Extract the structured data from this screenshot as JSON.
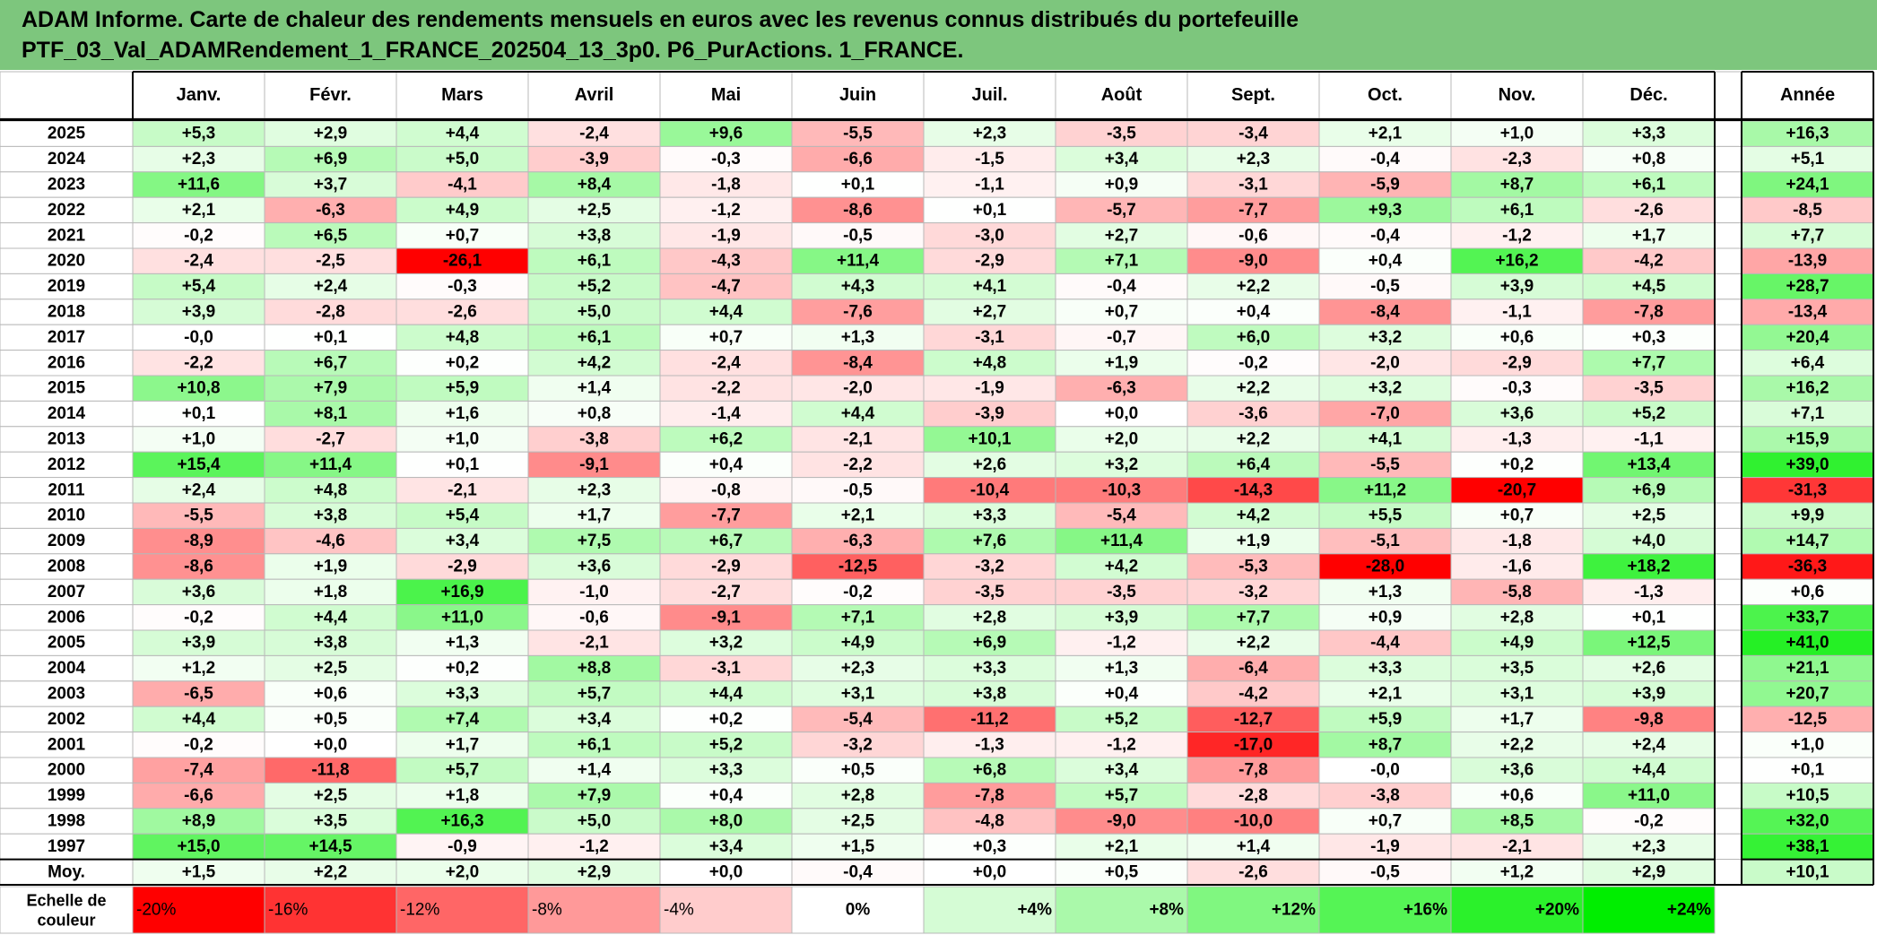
{
  "header": {
    "title_line1": "ADAM Informe. Carte de chaleur des rendements mensuels en euros avec les revenus connus distribués du portefeuille",
    "title_line2": "PTF_03_Val_ADAMRendement_1_FRANCE_202504_13_3p0. P6_PurActions. 1_FRANCE."
  },
  "chart_data": {
    "type": "heatmap",
    "title": "ADAM Informe. Carte de chaleur des rendements mensuels en euros avec les revenus connus distribués du portefeuille PTF_03_Val_ADAMRendement_1_FRANCE_202504_13_3p0. P6_PurActions. 1_FRANCE.",
    "columns": [
      "Janv.",
      "Févr.",
      "Mars",
      "Avril",
      "Mai",
      "Juin",
      "Juil.",
      "Août",
      "Sept.",
      "Oct.",
      "Nov.",
      "Déc."
    ],
    "annual_header": "Année",
    "color_scale_min": -20,
    "color_scale_max": 24,
    "color_negative": "#ff0000",
    "color_positive": "#00ee00",
    "rows": [
      {
        "year": "2025",
        "values": [
          "+5,3",
          "+2,9",
          "+4,4",
          "-2,4",
          "+9,6",
          "-5,5",
          "+2,3",
          "-3,5",
          "-3,4",
          "+2,1",
          "+1,0",
          "+3,3"
        ],
        "annual": "+16,3"
      },
      {
        "year": "2024",
        "values": [
          "+2,3",
          "+6,9",
          "+5,0",
          "-3,9",
          "-0,3",
          "-6,6",
          "-1,5",
          "+3,4",
          "+2,3",
          "-0,4",
          "-2,3",
          "+0,8"
        ],
        "annual": "+5,1"
      },
      {
        "year": "2023",
        "values": [
          "+11,6",
          "+3,7",
          "-4,1",
          "+8,4",
          "-1,8",
          "+0,1",
          "-1,1",
          "+0,9",
          "-3,1",
          "-5,9",
          "+8,7",
          "+6,1"
        ],
        "annual": "+24,1"
      },
      {
        "year": "2022",
        "values": [
          "+2,1",
          "-6,3",
          "+4,9",
          "+2,5",
          "-1,2",
          "-8,6",
          "+0,1",
          "-5,7",
          "-7,7",
          "+9,3",
          "+6,1",
          "-2,6"
        ],
        "annual": "-8,5"
      },
      {
        "year": "2021",
        "values": [
          "-0,2",
          "+6,5",
          "+0,7",
          "+3,8",
          "-1,9",
          "-0,5",
          "-3,0",
          "+2,7",
          "-0,6",
          "-0,4",
          "-1,2",
          "+1,7"
        ],
        "annual": "+7,7"
      },
      {
        "year": "2020",
        "values": [
          "-2,4",
          "-2,5",
          "-26,1",
          "+6,1",
          "-4,3",
          "+11,4",
          "-2,9",
          "+7,1",
          "-9,0",
          "+0,4",
          "+16,2",
          "-4,2"
        ],
        "annual": "-13,9"
      },
      {
        "year": "2019",
        "values": [
          "+5,4",
          "+2,4",
          "-0,3",
          "+5,2",
          "-4,7",
          "+4,3",
          "+4,1",
          "-0,4",
          "+2,2",
          "-0,5",
          "+3,9",
          "+4,5"
        ],
        "annual": "+28,7"
      },
      {
        "year": "2018",
        "values": [
          "+3,9",
          "-2,8",
          "-2,6",
          "+5,0",
          "+4,4",
          "-7,6",
          "+2,7",
          "+0,7",
          "+0,4",
          "-8,4",
          "-1,1",
          "-7,8"
        ],
        "annual": "-13,4"
      },
      {
        "year": "2017",
        "values": [
          "-0,0",
          "+0,1",
          "+4,8",
          "+6,1",
          "+0,7",
          "+1,3",
          "-3,1",
          "-0,7",
          "+6,0",
          "+3,2",
          "+0,6",
          "+0,3"
        ],
        "annual": "+20,4"
      },
      {
        "year": "2016",
        "values": [
          "-2,2",
          "+6,7",
          "+0,2",
          "+4,2",
          "-2,4",
          "-8,4",
          "+4,8",
          "+1,9",
          "-0,2",
          "-2,0",
          "-2,9",
          "+7,7"
        ],
        "annual": "+6,4"
      },
      {
        "year": "2015",
        "values": [
          "+10,8",
          "+7,9",
          "+5,9",
          "+1,4",
          "-2,2",
          "-2,0",
          "-1,9",
          "-6,3",
          "+2,2",
          "+3,2",
          "-0,3",
          "-3,5"
        ],
        "annual": "+16,2"
      },
      {
        "year": "2014",
        "values": [
          "+0,1",
          "+8,1",
          "+1,6",
          "+0,8",
          "-1,4",
          "+4,4",
          "-3,9",
          "+0,0",
          "-3,6",
          "-7,0",
          "+3,6",
          "+5,2"
        ],
        "annual": "+7,1"
      },
      {
        "year": "2013",
        "values": [
          "+1,0",
          "-2,7",
          "+1,0",
          "-3,8",
          "+6,2",
          "-2,1",
          "+10,1",
          "+2,0",
          "+2,2",
          "+4,1",
          "-1,3",
          "-1,1"
        ],
        "annual": "+15,9"
      },
      {
        "year": "2012",
        "values": [
          "+15,4",
          "+11,4",
          "+0,1",
          "-9,1",
          "+0,4",
          "-2,2",
          "+2,6",
          "+3,2",
          "+6,4",
          "-5,5",
          "+0,2",
          "+13,4"
        ],
        "annual": "+39,0"
      },
      {
        "year": "2011",
        "values": [
          "+2,4",
          "+4,8",
          "-2,1",
          "+2,3",
          "-0,8",
          "-0,5",
          "-10,4",
          "-10,3",
          "-14,3",
          "+11,2",
          "-20,7",
          "+6,9"
        ],
        "annual": "-31,3"
      },
      {
        "year": "2010",
        "values": [
          "-5,5",
          "+3,8",
          "+5,4",
          "+1,7",
          "-7,7",
          "+2,1",
          "+3,3",
          "-5,4",
          "+4,2",
          "+5,5",
          "+0,7",
          "+2,5"
        ],
        "annual": "+9,9"
      },
      {
        "year": "2009",
        "values": [
          "-8,9",
          "-4,6",
          "+3,4",
          "+7,5",
          "+6,7",
          "-6,3",
          "+7,6",
          "+11,4",
          "+1,9",
          "-5,1",
          "-1,8",
          "+4,0"
        ],
        "annual": "+14,7"
      },
      {
        "year": "2008",
        "values": [
          "-8,6",
          "+1,9",
          "-2,9",
          "+3,6",
          "-2,9",
          "-12,5",
          "-3,2",
          "+4,2",
          "-5,3",
          "-28,0",
          "-1,6",
          "+18,2"
        ],
        "annual": "-36,3"
      },
      {
        "year": "2007",
        "values": [
          "+3,6",
          "+1,8",
          "+16,9",
          "-1,0",
          "-2,7",
          "-0,2",
          "-3,5",
          "-3,5",
          "-3,2",
          "+1,3",
          "-5,8",
          "-1,3"
        ],
        "annual": "+0,6"
      },
      {
        "year": "2006",
        "values": [
          "-0,2",
          "+4,4",
          "+11,0",
          "-0,6",
          "-9,1",
          "+7,1",
          "+2,8",
          "+3,9",
          "+7,7",
          "+0,9",
          "+2,8",
          "+0,1"
        ],
        "annual": "+33,7"
      },
      {
        "year": "2005",
        "values": [
          "+3,9",
          "+3,8",
          "+1,3",
          "-2,1",
          "+3,2",
          "+4,9",
          "+6,9",
          "-1,2",
          "+2,2",
          "-4,4",
          "+4,9",
          "+12,5"
        ],
        "annual": "+41,0"
      },
      {
        "year": "2004",
        "values": [
          "+1,2",
          "+2,5",
          "+0,2",
          "+8,8",
          "-3,1",
          "+2,3",
          "+3,3",
          "+1,3",
          "-6,4",
          "+3,3",
          "+3,5",
          "+2,6"
        ],
        "annual": "+21,1"
      },
      {
        "year": "2003",
        "values": [
          "-6,5",
          "+0,6",
          "+3,3",
          "+5,7",
          "+4,4",
          "+3,1",
          "+3,8",
          "+0,4",
          "-4,2",
          "+2,1",
          "+3,1",
          "+3,9"
        ],
        "annual": "+20,7"
      },
      {
        "year": "2002",
        "values": [
          "+4,4",
          "+0,5",
          "+7,4",
          "+3,4",
          "+0,2",
          "-5,4",
          "-11,2",
          "+5,2",
          "-12,7",
          "+5,9",
          "+1,7",
          "-9,8"
        ],
        "annual": "-12,5"
      },
      {
        "year": "2001",
        "values": [
          "-0,2",
          "+0,0",
          "+1,7",
          "+6,1",
          "+5,2",
          "-3,2",
          "-1,3",
          "-1,2",
          "-17,0",
          "+8,7",
          "+2,2",
          "+2,4"
        ],
        "annual": "+1,0"
      },
      {
        "year": "2000",
        "values": [
          "-7,4",
          "-11,8",
          "+5,7",
          "+1,4",
          "+3,3",
          "+0,5",
          "+6,8",
          "+3,4",
          "-7,8",
          "-0,0",
          "+3,6",
          "+4,4"
        ],
        "annual": "+0,1"
      },
      {
        "year": "1999",
        "values": [
          "-6,6",
          "+2,5",
          "+1,8",
          "+7,9",
          "+0,4",
          "+2,8",
          "-7,8",
          "+5,7",
          "-2,8",
          "-3,8",
          "+0,6",
          "+11,0"
        ],
        "annual": "+10,5"
      },
      {
        "year": "1998",
        "values": [
          "+8,9",
          "+3,5",
          "+16,3",
          "+5,0",
          "+8,0",
          "+2,5",
          "-4,8",
          "-9,0",
          "-10,0",
          "+0,7",
          "+8,5",
          "-0,2"
        ],
        "annual": "+32,0"
      },
      {
        "year": "1997",
        "values": [
          "+15,0",
          "+14,5",
          "-0,9",
          "-1,2",
          "+3,4",
          "+1,5",
          "+0,3",
          "+2,1",
          "+1,4",
          "-1,9",
          "-2,1",
          "+2,3"
        ],
        "annual": "+38,1"
      }
    ],
    "average": {
      "label": "Moy.",
      "values": [
        "+1,5",
        "+2,2",
        "+2,0",
        "+2,9",
        "+0,0",
        "-0,4",
        "+0,0",
        "+0,5",
        "-2,6",
        "-0,5",
        "+1,2",
        "+2,9"
      ],
      "annual": "+10,1"
    },
    "legend": {
      "label_line1": "Echelle de",
      "label_line2": "couleur",
      "steps": [
        {
          "label": "-20%",
          "value": -20
        },
        {
          "label": "-16%",
          "value": -16
        },
        {
          "label": "-12%",
          "value": -12
        },
        {
          "label": "-8%",
          "value": -8
        },
        {
          "label": "-4%",
          "value": -4
        },
        {
          "label": "0%",
          "value": 0
        },
        {
          "label": "+4%",
          "value": 4
        },
        {
          "label": "+8%",
          "value": 8
        },
        {
          "label": "+12%",
          "value": 12
        },
        {
          "label": "+16%",
          "value": 16
        },
        {
          "label": "+20%",
          "value": 20
        },
        {
          "label": "+24%",
          "value": 24
        }
      ]
    }
  }
}
